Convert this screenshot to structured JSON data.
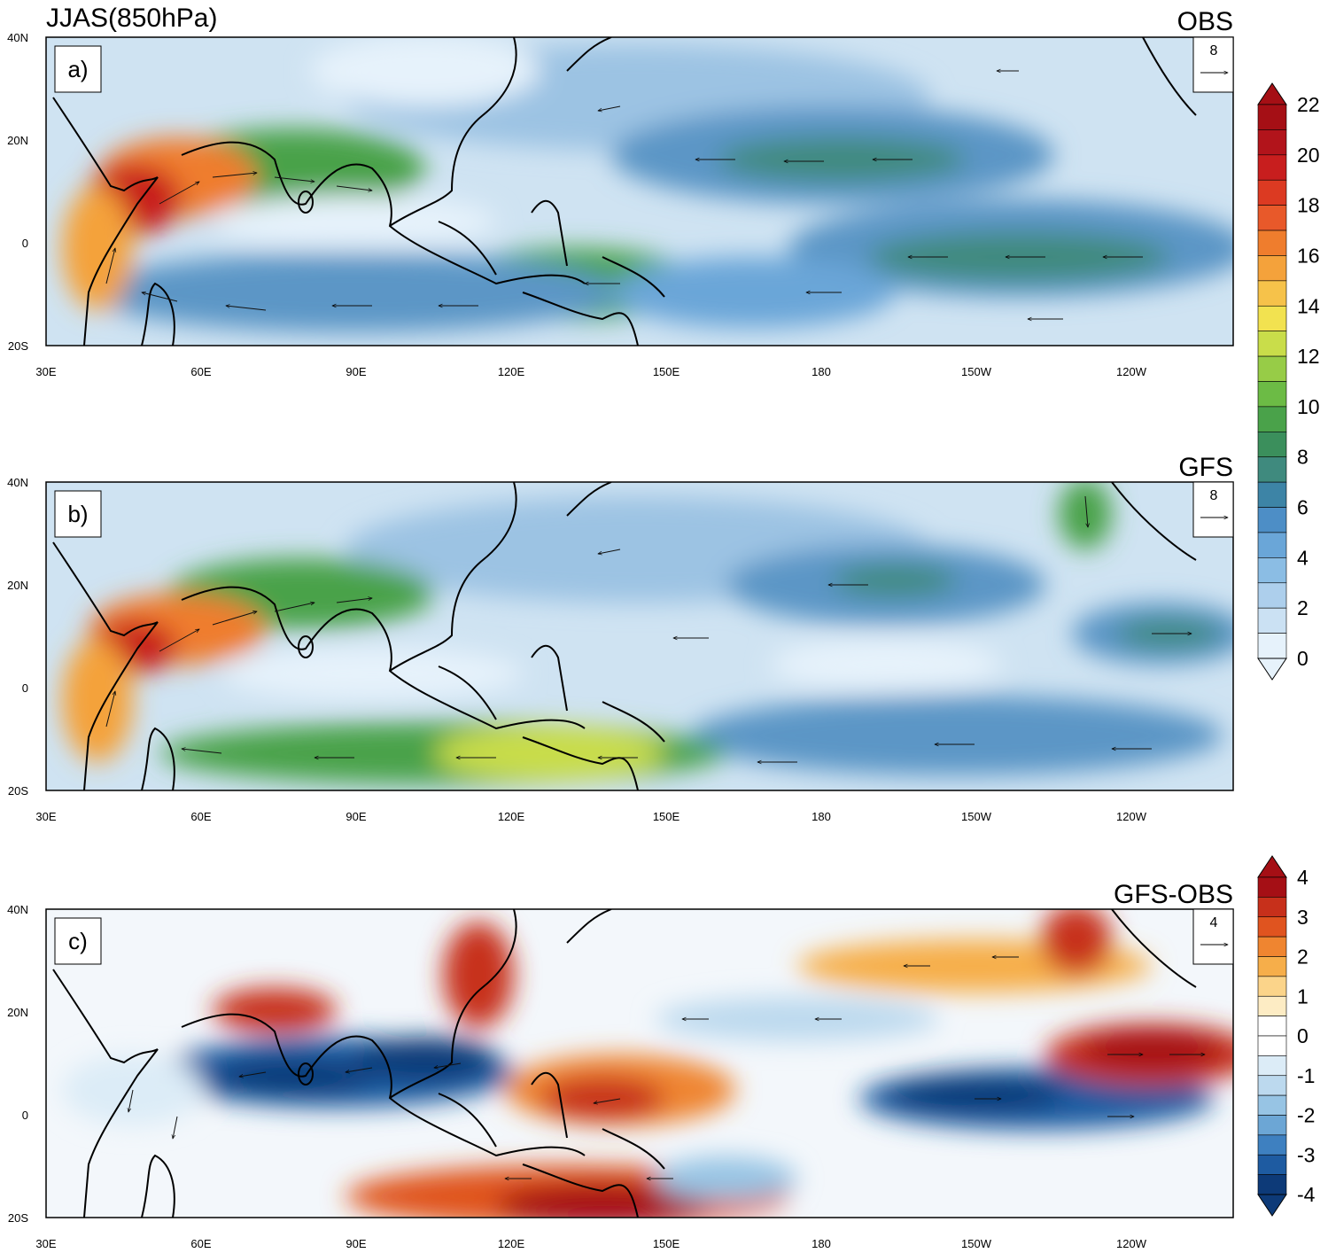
{
  "figure": {
    "title": "JJAS(850hPa)",
    "panels": [
      {
        "id": "a",
        "letter": "a)",
        "label": "OBS",
        "ref_vector": "8",
        "kind": "speed"
      },
      {
        "id": "b",
        "letter": "b)",
        "label": "GFS",
        "ref_vector": "8",
        "kind": "speed"
      },
      {
        "id": "c",
        "letter": "c)",
        "label": "GFS-OBS",
        "ref_vector": "4",
        "kind": "diff"
      }
    ],
    "lat_ticks": [
      "40N",
      "20N",
      "0",
      "20S"
    ],
    "lon_ticks": [
      "30E",
      "60E",
      "90E",
      "120E",
      "150E",
      "180",
      "150W",
      "120W"
    ],
    "colorbar_speed": {
      "labels": [
        "22",
        "20",
        "18",
        "16",
        "14",
        "12",
        "10",
        "8",
        "6",
        "4",
        "2",
        "0"
      ],
      "colors": [
        "#a50f15",
        "#b2141b",
        "#c81e1e",
        "#dc3a22",
        "#e8592a",
        "#ef7d2d",
        "#f4a23b",
        "#f6c24a",
        "#f2e250",
        "#c9dd4a",
        "#97cc47",
        "#6cbb45",
        "#4aa24a",
        "#3b8f5c",
        "#3f8a7e",
        "#3d84a6",
        "#4d8ec6",
        "#6aa6d8",
        "#8bbde4",
        "#adcfec",
        "#cbe1f3",
        "#e6f2fb"
      ]
    },
    "colorbar_diff": {
      "labels": [
        "4",
        "3",
        "2",
        "1",
        "0",
        "-1",
        "-2",
        "-3",
        "-4"
      ],
      "colors": [
        "#a50f15",
        "#c7301b",
        "#e0541f",
        "#ef8530",
        "#f6ae4a",
        "#fbd48a",
        "#fdecc4",
        "#ffffff",
        "#ffffff",
        "#dcecf7",
        "#bcd9ee",
        "#97c4e4",
        "#6ca6d5",
        "#3e80c0",
        "#1e5ba1",
        "#0d3a78"
      ]
    }
  }
}
